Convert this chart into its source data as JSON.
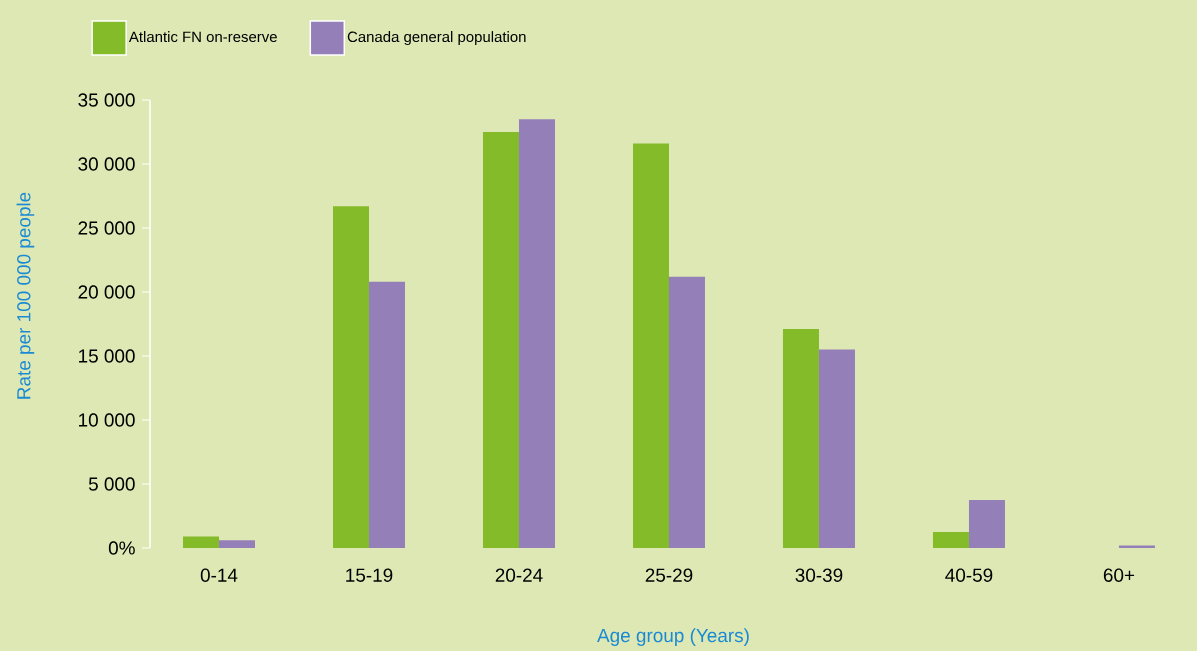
{
  "chart_data": {
    "type": "bar",
    "xlabel": "Age group (Years)",
    "ylabel": "Rate per 100 000 people",
    "categories": [
      "0-14",
      "15-19",
      "20-24",
      "25-29",
      "30-39",
      "40-59",
      "60+"
    ],
    "series": [
      {
        "name": "Atlantic FN on-reserve",
        "color": "#84bb29",
        "values": [
          900,
          26700,
          32500,
          31600,
          17100,
          1250,
          0
        ]
      },
      {
        "name": "Canada general population",
        "color": "#957fb8",
        "values": [
          600,
          20800,
          33500,
          21200,
          15500,
          3750,
          200
        ]
      }
    ],
    "ylim": [
      0,
      35000
    ],
    "yticks": [
      {
        "value": 0,
        "label": "0%"
      },
      {
        "value": 5000,
        "label": "5 000"
      },
      {
        "value": 10000,
        "label": "10 000"
      },
      {
        "value": 15000,
        "label": "15 000"
      },
      {
        "value": 20000,
        "label": "20 000"
      },
      {
        "value": 25000,
        "label": "25 000"
      },
      {
        "value": 30000,
        "label": "30 000"
      },
      {
        "value": 35000,
        "label": "35 000"
      }
    ],
    "grid": false,
    "legend": "top left"
  }
}
